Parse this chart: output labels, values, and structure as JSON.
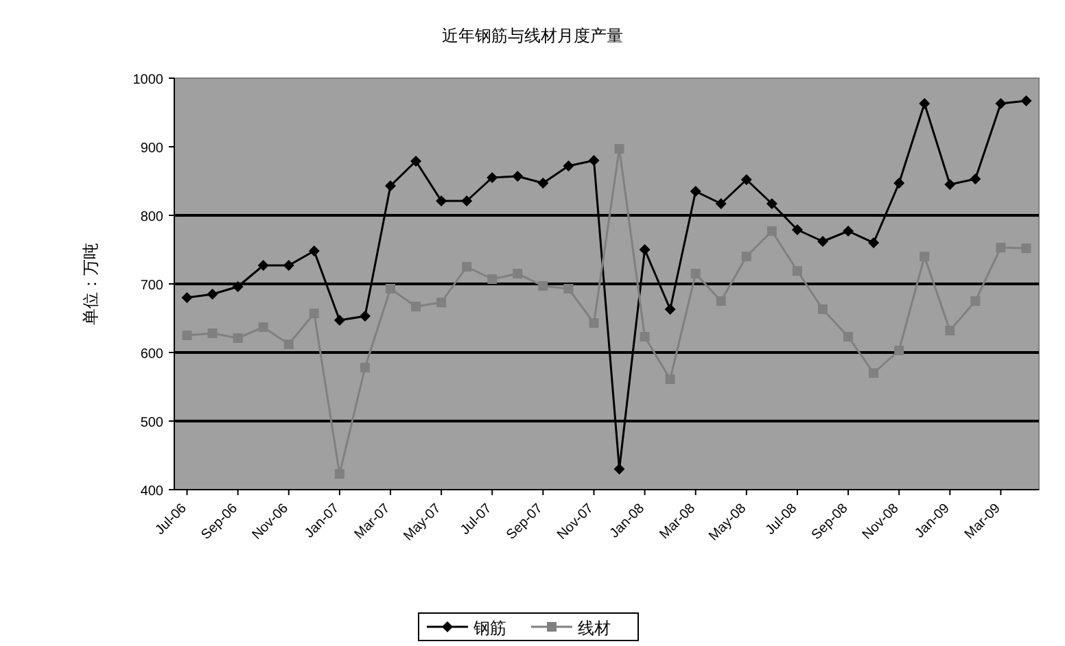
{
  "chart_data": {
    "type": "line",
    "title": "近年钢筋与线材月度产量",
    "ylabel": "单位：万吨",
    "x": [
      "2006-07",
      "2006-08",
      "2006-09",
      "2006-10",
      "2006-11",
      "2006-12",
      "2007-01",
      "2007-02",
      "2007-03",
      "2007-04",
      "2007-05",
      "2007-06",
      "2007-07",
      "2007-08",
      "2007-09",
      "2007-10",
      "2007-11",
      "2007-12",
      "2008-01",
      "2008-02",
      "2008-03",
      "2008-04",
      "2008-05",
      "2008-06",
      "2008-07",
      "2008-08",
      "2008-09",
      "2008-10",
      "2008-11",
      "2008-12",
      "2009-01",
      "2009-02",
      "2009-03",
      "2009-04"
    ],
    "series": [
      {
        "name": "钢筋",
        "color": "#000000",
        "marker": "diamond",
        "values": [
          680,
          685,
          696,
          727,
          727,
          748,
          647,
          653,
          843,
          879,
          821,
          821,
          855,
          857,
          847,
          872,
          880,
          430,
          750,
          663,
          835,
          817,
          852,
          817,
          779,
          762,
          777,
          760,
          847,
          963,
          845,
          853,
          963,
          967
        ]
      },
      {
        "name": "线材",
        "color": "#808080",
        "marker": "square",
        "values": [
          625,
          628,
          621,
          637,
          612,
          657,
          423,
          578,
          693,
          667,
          673,
          725,
          707,
          715,
          697,
          693,
          643,
          897,
          623,
          561,
          715,
          675,
          740,
          777,
          719,
          663,
          623,
          570,
          603,
          740,
          632,
          675,
          753,
          752
        ]
      }
    ],
    "xlim": [
      "2006-06-16",
      "2009-04-16"
    ],
    "xticks": [
      {
        "value": "2006-07",
        "label": "Jul-06"
      },
      {
        "value": "2006-09",
        "label": "Sep-06"
      },
      {
        "value": "2006-11",
        "label": "Nov-06"
      },
      {
        "value": "2007-01",
        "label": "Jan-07"
      },
      {
        "value": "2007-03",
        "label": "Mar-07"
      },
      {
        "value": "2007-05",
        "label": "May-07"
      },
      {
        "value": "2007-07",
        "label": "Jul-07"
      },
      {
        "value": "2007-09",
        "label": "Sep-07"
      },
      {
        "value": "2007-11",
        "label": "Nov-07"
      },
      {
        "value": "2008-01",
        "label": "Jan-08"
      },
      {
        "value": "2008-03",
        "label": "Mar-08"
      },
      {
        "value": "2008-05",
        "label": "May-08"
      },
      {
        "value": "2008-07",
        "label": "Jul-08"
      },
      {
        "value": "2008-09",
        "label": "Sep-08"
      },
      {
        "value": "2008-11",
        "label": "Nov-08"
      },
      {
        "value": "2009-01",
        "label": "Jan-09"
      },
      {
        "value": "2009-03",
        "label": "Mar-09"
      }
    ],
    "ylim": [
      400,
      1000
    ],
    "yticks": [
      400,
      500,
      600,
      700,
      800,
      900,
      1000
    ],
    "ref_lines": [
      {
        "axis": "y",
        "value": 500,
        "color": "#000000"
      },
      {
        "axis": "y",
        "value": 600,
        "color": "#000000"
      },
      {
        "axis": "y",
        "value": 700,
        "color": "#000000"
      },
      {
        "axis": "y",
        "value": 800,
        "color": "#000000"
      }
    ],
    "legend": "bottom"
  }
}
